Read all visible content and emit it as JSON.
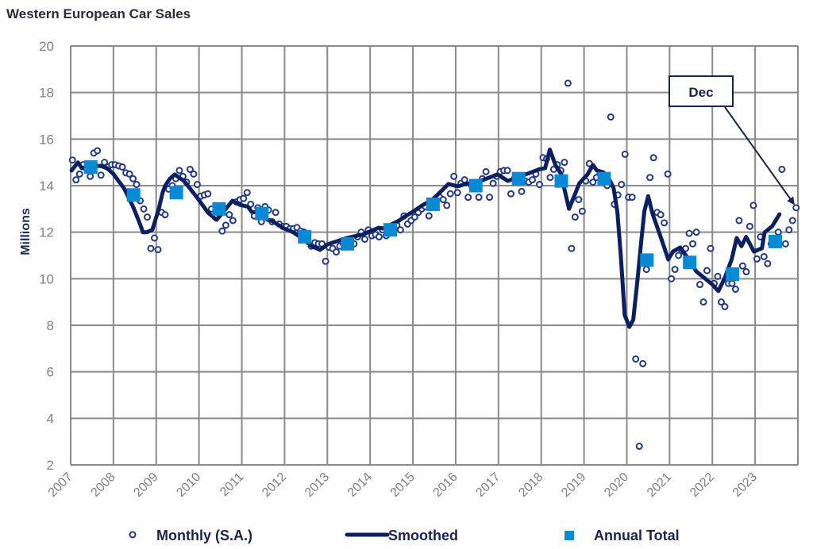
{
  "chart_data": {
    "type": "line",
    "title": "Western European Car Sales",
    "xlabel": "",
    "ylabel": "Millions",
    "ylim": [
      2,
      20
    ],
    "yticks": [
      2,
      4,
      6,
      8,
      10,
      12,
      14,
      16,
      18,
      20
    ],
    "xlim": [
      2007,
      2024
    ],
    "xticks": [
      "2007",
      "2008",
      "2009",
      "2010",
      "2011",
      "2012",
      "2013",
      "2014",
      "2015",
      "2016",
      "2017",
      "2018",
      "2019",
      "2020",
      "2021",
      "2022",
      "2023"
    ],
    "grid": true,
    "legend": {
      "position": "bottom",
      "entries": [
        {
          "label": "Monthly (S.A.)",
          "marker": "circle"
        },
        {
          "label": "Smoothed",
          "marker": "line"
        },
        {
          "label": "Annual Total",
          "marker": "square"
        }
      ]
    },
    "colors": {
      "monthly": "#22398a",
      "smoothed": "#0c1f63",
      "annual": "#0a89d4",
      "grid": "#8a8a8a"
    },
    "series": [
      {
        "name": "Monthly (S.A.)",
        "type": "scatter",
        "by_year": [
          {
            "year": 2007,
            "values": [
              15.1,
              14.25,
              14.5,
              14.9,
              14.7,
              14.4,
              15.4,
              15.5,
              14.45,
              15.0,
              14.8,
              14.9
            ]
          },
          {
            "year": 2008,
            "values": [
              14.9,
              14.85,
              14.8,
              14.55,
              14.5,
              14.3,
              14.05,
              13.35,
              13.0,
              12.65,
              11.3,
              11.75
            ]
          },
          {
            "year": 2009,
            "values": [
              11.25,
              12.85,
              12.75,
              13.85,
              14.0,
              14.3,
              14.65,
              14.4,
              14.15,
              14.7,
              14.5,
              14.05
            ]
          },
          {
            "year": 2010,
            "values": [
              13.55,
              13.6,
              13.65,
              13.0,
              12.65,
              12.9,
              12.05,
              12.3,
              12.75,
              12.5,
              13.3,
              13.4
            ]
          },
          {
            "year": 2011,
            "values": [
              13.45,
              13.7,
              13.2,
              12.7,
              13.05,
              12.45,
              13.1,
              12.95,
              12.45,
              12.85,
              12.35,
              12.25
            ]
          },
          {
            "year": 2012,
            "values": [
              12.25,
              12.15,
              12.15,
              12.2,
              12.05,
              12.0,
              11.85,
              11.4,
              11.55,
              11.5,
              11.5,
              10.75
            ]
          },
          {
            "year": 2013,
            "values": [
              11.35,
              11.3,
              11.15,
              11.4,
              11.5,
              11.55,
              11.6,
              11.5,
              11.8,
              12.0,
              11.7,
              12.1
            ]
          },
          {
            "year": 2014,
            "values": [
              11.85,
              11.9,
              11.8,
              12.1,
              11.85,
              12.1,
              12.2,
              12.3,
              12.1,
              12.7,
              12.35,
              12.5
            ]
          },
          {
            "year": 2015,
            "values": [
              12.65,
              12.85,
              13.0,
              13.1,
              12.7,
              13.2,
              13.3,
              13.5,
              13.4,
              13.15,
              13.65,
              14.4
            ]
          },
          {
            "year": 2016,
            "values": [
              13.7,
              14.1,
              14.25,
              13.5,
              14.0,
              14.1,
              13.5,
              14.3,
              14.6,
              13.5,
              14.1,
              14.4
            ]
          },
          {
            "year": 2017,
            "values": [
              14.6,
              14.65,
              14.65,
              13.65,
              14.3,
              14.4,
              13.75,
              14.2,
              14.15,
              14.25,
              14.5,
              14.05
            ]
          },
          {
            "year": 2018,
            "values": [
              15.2,
              15.15,
              14.35,
              14.7,
              14.9,
              14.65,
              15.0,
              18.4,
              11.3,
              12.65,
              13.4,
              12.9
            ]
          },
          {
            "year": 2019,
            "values": [
              14.2,
              14.95,
              14.15,
              14.35,
              14.5,
              14.3,
              14.0,
              16.95,
              13.2,
              13.6,
              14.05,
              15.35
            ]
          },
          {
            "year": 2020,
            "values": [
              13.5,
              13.5,
              6.55,
              2.8,
              6.35,
              10.4,
              14.35,
              15.2,
              12.85,
              12.75,
              12.4,
              14.5
            ]
          },
          {
            "year": 2021,
            "values": [
              10.0,
              10.4,
              11.0,
              11.2,
              11.3,
              11.95,
              11.5,
              12.0,
              9.75,
              9.0,
              10.35,
              11.3
            ]
          },
          {
            "year": 2022,
            "values": [
              9.8,
              10.1,
              9.0,
              8.8,
              9.8,
              9.8,
              9.55,
              12.5,
              10.55,
              10.3,
              12.25,
              13.15
            ]
          },
          {
            "year": 2023,
            "values": [
              10.85,
              11.8,
              10.95,
              10.65,
              11.5,
              11.6,
              12.0,
              14.7,
              11.5,
              12.1,
              12.5,
              13.05
            ]
          }
        ]
      },
      {
        "name": "Smoothed",
        "type": "line",
        "points": [
          [
            2007.02,
            14.65
          ],
          [
            2007.17,
            15.0
          ],
          [
            2007.26,
            14.75
          ],
          [
            2007.48,
            14.85
          ],
          [
            2007.7,
            14.85
          ],
          [
            2007.85,
            14.75
          ],
          [
            2008.0,
            14.5
          ],
          [
            2008.26,
            13.85
          ],
          [
            2008.47,
            13.05
          ],
          [
            2008.6,
            12.45
          ],
          [
            2008.69,
            12.0
          ],
          [
            2008.78,
            12.0
          ],
          [
            2008.91,
            12.1
          ],
          [
            2009.06,
            13.0
          ],
          [
            2009.15,
            13.7
          ],
          [
            2009.21,
            14.0
          ],
          [
            2009.32,
            14.3
          ],
          [
            2009.43,
            14.48
          ],
          [
            2009.65,
            14.2
          ],
          [
            2009.95,
            13.5
          ],
          [
            2010.21,
            12.84
          ],
          [
            2010.41,
            12.53
          ],
          [
            2010.6,
            12.94
          ],
          [
            2010.78,
            13.35
          ],
          [
            2010.95,
            13.18
          ],
          [
            2011.14,
            13.1
          ],
          [
            2011.23,
            12.88
          ],
          [
            2011.38,
            12.84
          ],
          [
            2011.6,
            12.53
          ],
          [
            2011.69,
            12.5
          ],
          [
            2011.99,
            12.16
          ],
          [
            2012.2,
            12.0
          ],
          [
            2012.4,
            11.75
          ],
          [
            2012.64,
            11.4
          ],
          [
            2012.83,
            11.24
          ],
          [
            2013.01,
            11.48
          ],
          [
            2013.46,
            11.75
          ],
          [
            2013.83,
            11.9
          ],
          [
            2014.2,
            12.19
          ],
          [
            2014.31,
            12.16
          ],
          [
            2014.68,
            12.5
          ],
          [
            2014.81,
            12.67
          ],
          [
            2015.0,
            12.88
          ],
          [
            2015.24,
            13.18
          ],
          [
            2015.42,
            13.35
          ],
          [
            2015.55,
            13.56
          ],
          [
            2015.83,
            14.07
          ],
          [
            2016.05,
            13.97
          ],
          [
            2016.24,
            14.07
          ],
          [
            2016.48,
            14.14
          ],
          [
            2016.72,
            14.3
          ],
          [
            2016.98,
            14.48
          ],
          [
            2017.22,
            14.2
          ],
          [
            2017.46,
            14.37
          ],
          [
            2017.72,
            14.54
          ],
          [
            2017.96,
            14.71
          ],
          [
            2018.09,
            14.75
          ],
          [
            2018.2,
            15.55
          ],
          [
            2018.34,
            14.85
          ],
          [
            2018.47,
            14.5
          ],
          [
            2018.52,
            14.03
          ],
          [
            2018.65,
            13.0
          ],
          [
            2018.89,
            14.1
          ],
          [
            2019.08,
            14.48
          ],
          [
            2019.21,
            14.89
          ],
          [
            2019.3,
            14.65
          ],
          [
            2019.45,
            14.58
          ],
          [
            2019.6,
            14.24
          ],
          [
            2019.69,
            13.9
          ],
          [
            2019.78,
            12.87
          ],
          [
            2019.86,
            11.0
          ],
          [
            2019.95,
            8.44
          ],
          [
            2020.06,
            7.93
          ],
          [
            2020.15,
            8.24
          ],
          [
            2020.25,
            9.94
          ],
          [
            2020.34,
            11.65
          ],
          [
            2020.41,
            12.9
          ],
          [
            2020.5,
            13.55
          ],
          [
            2020.6,
            12.8
          ],
          [
            2020.8,
            11.75
          ],
          [
            2020.97,
            10.83
          ],
          [
            2021.08,
            11.17
          ],
          [
            2021.25,
            11.34
          ],
          [
            2021.34,
            11.1
          ],
          [
            2021.49,
            10.73
          ],
          [
            2021.62,
            10.32
          ],
          [
            2021.77,
            10.1
          ],
          [
            2021.99,
            9.77
          ],
          [
            2022.14,
            9.47
          ],
          [
            2022.29,
            10.04
          ],
          [
            2022.45,
            10.83
          ],
          [
            2022.57,
            11.75
          ],
          [
            2022.68,
            11.4
          ],
          [
            2022.79,
            11.8
          ],
          [
            2022.97,
            11.17
          ],
          [
            2023.16,
            11.31
          ],
          [
            2023.22,
            11.99
          ],
          [
            2023.4,
            12.26
          ],
          [
            2023.57,
            12.77
          ]
        ]
      },
      {
        "name": "Annual Total",
        "type": "square-marker",
        "years": [
          2007,
          2008,
          2009,
          2010,
          2011,
          2012,
          2013,
          2014,
          2015,
          2016,
          2017,
          2018,
          2019,
          2020,
          2021,
          2022,
          2023
        ],
        "values": [
          14.8,
          13.6,
          13.7,
          13.0,
          12.8,
          11.8,
          11.5,
          12.1,
          13.2,
          14.0,
          14.3,
          14.2,
          14.3,
          10.8,
          10.7,
          10.2,
          11.6
        ]
      }
    ],
    "annotations": [
      {
        "text": "Dec",
        "points_to": {
          "series": "Monthly (S.A.)",
          "year": 2023,
          "month": 12
        }
      }
    ]
  }
}
